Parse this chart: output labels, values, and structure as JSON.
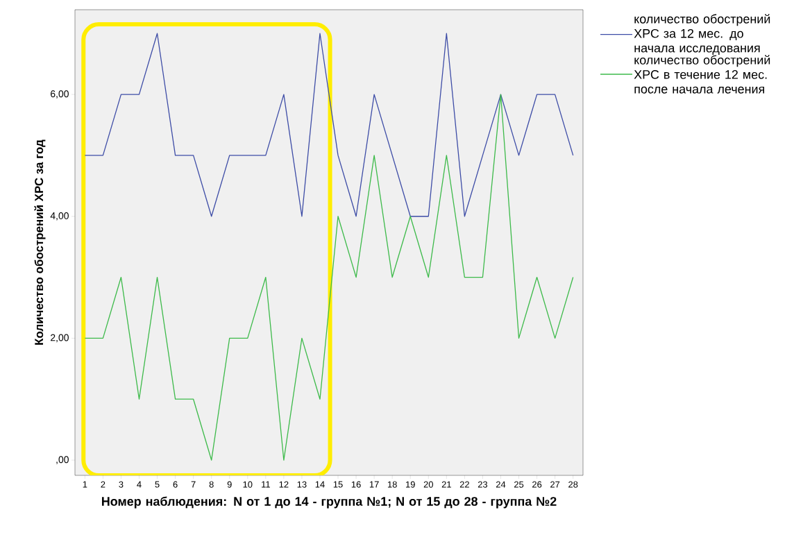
{
  "chart_data": {
    "type": "line",
    "xlabel": "Номер наблюдения: N от 1 до 14 - группа №1; N от 15 до 28 - группа №2",
    "ylabel": "Количество обострений ХРС за год",
    "categories": [
      "1",
      "2",
      "3",
      "4",
      "5",
      "6",
      "7",
      "8",
      "9",
      "10",
      "11",
      "12",
      "13",
      "14",
      "15",
      "16",
      "17",
      "18",
      "19",
      "20",
      "21",
      "22",
      "23",
      "24",
      "25",
      "26",
      "27",
      "28"
    ],
    "series": [
      {
        "name": "количество обострений ХРС за 12 мес. до начала исследования",
        "color": "#3d4ca6",
        "values": [
          5,
          5,
          6,
          6,
          7,
          5,
          5,
          4,
          5,
          5,
          5,
          6,
          4,
          7,
          5,
          4,
          6,
          5,
          4,
          4,
          7,
          4,
          5,
          6,
          5,
          6,
          6,
          5
        ]
      },
      {
        "name": "количество обострений ХРС в течение 12 мес. после начала лечения",
        "color": "#3dba4a",
        "values": [
          2,
          2,
          3,
          1,
          3,
          1,
          1,
          0,
          2,
          2,
          3,
          0,
          2,
          1,
          4,
          3,
          5,
          3,
          4,
          3,
          5,
          3,
          3,
          6,
          2,
          3,
          2,
          3
        ]
      }
    ],
    "ylim": [
      -0.25,
      7.39
    ],
    "yticks": [
      {
        "value": 0,
        "label": ",00"
      },
      {
        "value": 2,
        "label": "2,00"
      },
      {
        "value": 4,
        "label": "4,00"
      },
      {
        "value": 6,
        "label": "6,00"
      }
    ],
    "legend": "right",
    "grid": false,
    "marker": "none",
    "line_style": "solid"
  }
}
